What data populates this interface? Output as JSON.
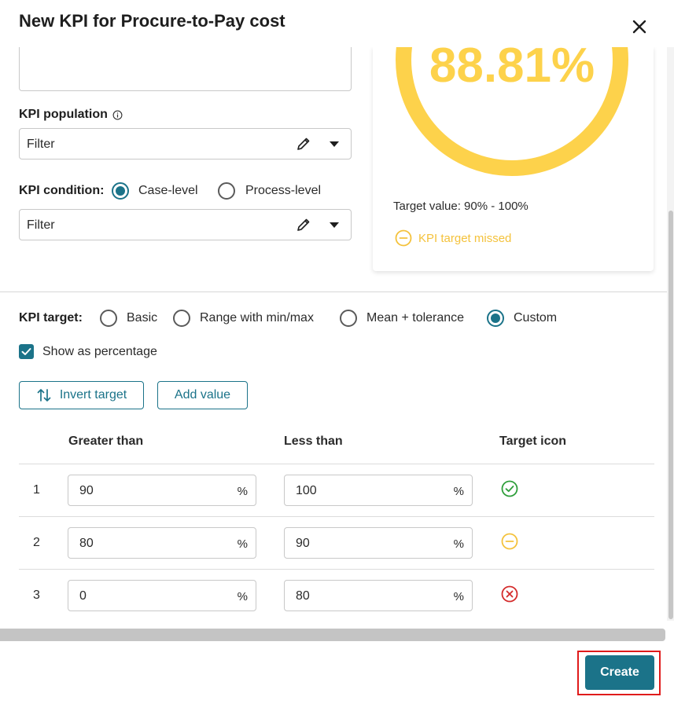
{
  "dialog": {
    "title": "New KPI for Procure-to-Pay cost"
  },
  "population": {
    "label": "KPI population",
    "filter_label": "Filter"
  },
  "condition": {
    "label": "KPI condition:",
    "options": [
      "Case-level",
      "Process-level"
    ],
    "selected": "Case-level",
    "filter_label": "Filter"
  },
  "preview": {
    "value": "88.81%",
    "target_value_text": "Target value: 90% - 100%",
    "status_text": "KPI target missed",
    "accent_color": "#fdd24b"
  },
  "target": {
    "label": "KPI target:",
    "options": [
      "Basic",
      "Range with min/max",
      "Mean + tolerance",
      "Custom"
    ],
    "selected": "Custom",
    "show_percentage_label": "Show as percentage",
    "show_percentage_checked": true,
    "invert_label": "Invert target",
    "add_value_label": "Add value"
  },
  "table": {
    "headers": [
      "Greater than",
      "Less than",
      "Target icon"
    ],
    "rows": [
      {
        "index": "1",
        "greater": "90",
        "less": "100",
        "unit": "%",
        "icon": "check-circle-icon"
      },
      {
        "index": "2",
        "greater": "80",
        "less": "90",
        "unit": "%",
        "icon": "minus-circle-icon"
      },
      {
        "index": "3",
        "greater": "0",
        "less": "80",
        "unit": "%",
        "icon": "x-circle-icon"
      }
    ]
  },
  "footer": {
    "create_label": "Create"
  },
  "colors": {
    "primary": "#1b7389",
    "success": "#2e9e3a",
    "warning": "#f4c23c",
    "danger": "#d42b2b"
  }
}
